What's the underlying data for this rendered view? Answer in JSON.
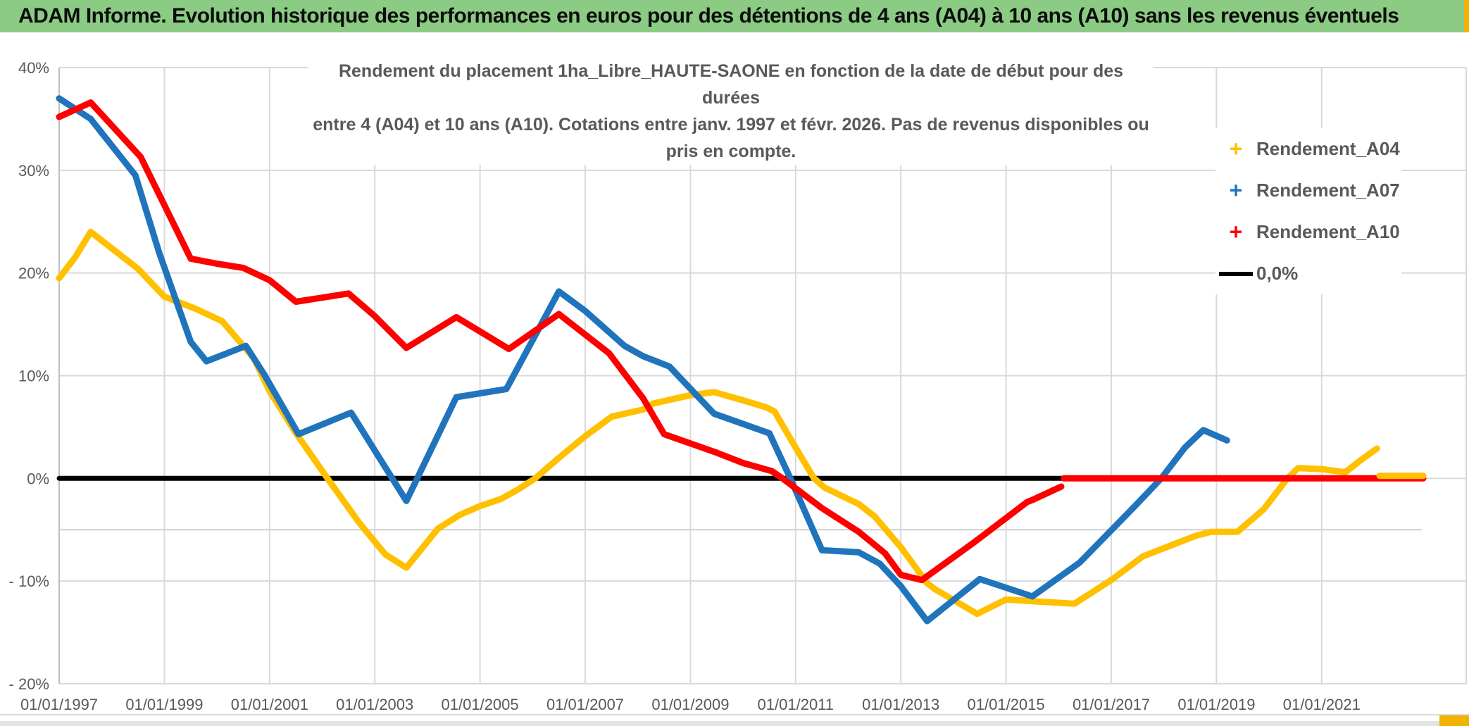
{
  "header": {
    "title": "ADAM Informe. Evolution historique des performances en euros pour des détentions de 4 ans (A04) à 10 ans (A10) sans les revenus éventuels",
    "bg_color": "#8BCB83",
    "accent_color": "#F2B200"
  },
  "chart_data": {
    "type": "line",
    "title_lines": [
      "Rendement du placement 1ha_Libre_HAUTE-SAONE en fonction de la date de début pour des durées",
      "entre 4 (A04) et 10 ans (A10). Cotations entre janv. 1997 et févr. 2026. Pas de revenus disponibles ou pris en compte."
    ],
    "x_axis": {
      "tick_labels": [
        "01/01/1997",
        "01/01/1999",
        "01/01/2001",
        "01/01/2003",
        "01/01/2005",
        "01/01/2007",
        "01/01/2009",
        "01/01/2011",
        "01/01/2013",
        "01/01/2015",
        "01/01/2017",
        "01/01/2019",
        "01/01/2021"
      ],
      "tick_years": [
        1997,
        1999,
        2001,
        2003,
        2005,
        2007,
        2009,
        2011,
        2013,
        2015,
        2017,
        2019,
        2021
      ],
      "xlim": [
        1997,
        2023.8
      ],
      "grid": "vertical every 2 years"
    },
    "y_axis": {
      "tick_labels": [
        "40%",
        "30%",
        "20%",
        "10%",
        "0%",
        "- 10%",
        "- 20%"
      ],
      "tick_values": [
        40,
        30,
        20,
        10,
        0,
        -10,
        -20
      ],
      "ylim": [
        -20,
        40
      ],
      "unit": "percent",
      "extra_faint_gridline_at": -5
    },
    "legend": [
      {
        "label": "Rendement_A04",
        "color": "#FFC000",
        "marker": "plus"
      },
      {
        "label": "Rendement_A07",
        "color": "#2074BC",
        "marker": "plus"
      },
      {
        "label": "Rendement_A10",
        "color": "#FF0000",
        "marker": "plus"
      },
      {
        "label": "0,0%",
        "color": "#000000",
        "marker": "line"
      }
    ],
    "series": [
      {
        "name": "Rendement_A04",
        "color": "#FFC000",
        "points": [
          [
            1997,
            19.5
          ],
          [
            1997.3,
            21.5
          ],
          [
            1997.6,
            24
          ],
          [
            1998,
            22.4
          ],
          [
            1998.5,
            20.4
          ],
          [
            1999,
            17.7
          ],
          [
            1999.6,
            16.5
          ],
          [
            2000.1,
            15.3
          ],
          [
            2000.7,
            11.7
          ],
          [
            2001,
            8.5
          ],
          [
            2001.5,
            4.4
          ],
          [
            2002.1,
            0
          ],
          [
            2002.7,
            -4.3
          ],
          [
            2003.2,
            -7.4
          ],
          [
            2003.6,
            -8.7
          ],
          [
            2004.2,
            -4.9
          ],
          [
            2004.6,
            -3.6
          ],
          [
            2005,
            -2.7
          ],
          [
            2005.4,
            -2
          ],
          [
            2005.75,
            -1
          ],
          [
            2006.05,
            0
          ],
          [
            2006.5,
            2
          ],
          [
            2007,
            4.1
          ],
          [
            2007.5,
            6
          ],
          [
            2008.1,
            6.7
          ],
          [
            2008.3,
            7.3
          ],
          [
            2009,
            8.1
          ],
          [
            2009.45,
            8.4
          ],
          [
            2010,
            7.6
          ],
          [
            2010.45,
            6.9
          ],
          [
            2010.6,
            6.5
          ],
          [
            2011,
            3
          ],
          [
            2011.35,
            0
          ],
          [
            2011.55,
            -0.9
          ],
          [
            2012.2,
            -2.5
          ],
          [
            2012.5,
            -3.7
          ],
          [
            2013,
            -6.7
          ],
          [
            2013.5,
            -10.2
          ],
          [
            2013.65,
            -10.8
          ],
          [
            2014.45,
            -13.2
          ],
          [
            2015,
            -11.8
          ],
          [
            2015.6,
            -12
          ],
          [
            2016.3,
            -12.2
          ],
          [
            2017,
            -9.9
          ],
          [
            2017.6,
            -7.6
          ],
          [
            2018,
            -6.8
          ],
          [
            2018.6,
            -5.6
          ],
          [
            2018.9,
            -5.2
          ],
          [
            2019.4,
            -5.2
          ],
          [
            2019.9,
            -3
          ],
          [
            2020.35,
            0
          ],
          [
            2020.55,
            1
          ],
          [
            2021,
            0.9
          ],
          [
            2021.45,
            0.6
          ],
          [
            2021.75,
            1.8
          ],
          [
            2022.05,
            2.9
          ]
        ]
      },
      {
        "name": "Rendement_A07",
        "color": "#2074BC",
        "points": [
          [
            1997,
            37
          ],
          [
            1997.6,
            35
          ],
          [
            1998.45,
            29.5
          ],
          [
            1998.9,
            22
          ],
          [
            1999.5,
            13.3
          ],
          [
            1999.8,
            11.4
          ],
          [
            2000.55,
            12.9
          ],
          [
            2000.9,
            10.1
          ],
          [
            2001.55,
            4.3
          ],
          [
            2002.55,
            6.4
          ],
          [
            2003.6,
            -2.2
          ],
          [
            2004.55,
            7.9
          ],
          [
            2005.5,
            8.7
          ],
          [
            2006.5,
            18.2
          ],
          [
            2007,
            16.3
          ],
          [
            2007.75,
            12.9
          ],
          [
            2008.1,
            11.9
          ],
          [
            2008.6,
            10.9
          ],
          [
            2009.45,
            6.3
          ],
          [
            2010.5,
            4.4
          ],
          [
            2010.9,
            0
          ],
          [
            2011.5,
            -7
          ],
          [
            2012.2,
            -7.2
          ],
          [
            2012.6,
            -8.3
          ],
          [
            2013,
            -10.5
          ],
          [
            2013.5,
            -13.9
          ],
          [
            2014.5,
            -9.8
          ],
          [
            2015.5,
            -11.5
          ],
          [
            2016.4,
            -8.2
          ],
          [
            2017.45,
            -2.7
          ],
          [
            2017.95,
            0
          ],
          [
            2018.4,
            3
          ],
          [
            2018.75,
            4.7
          ],
          [
            2019.2,
            3.7
          ]
        ]
      },
      {
        "name": "Rendement_A10",
        "color": "#FF0000",
        "points": [
          [
            1997,
            35.2
          ],
          [
            1997.6,
            36.6
          ],
          [
            1998.55,
            31.3
          ],
          [
            1999.5,
            21.4
          ],
          [
            2000,
            20.9
          ],
          [
            2000.5,
            20.5
          ],
          [
            2001,
            19.3
          ],
          [
            2001.5,
            17.2
          ],
          [
            2002,
            17.6
          ],
          [
            2002.5,
            18
          ],
          [
            2003,
            15.8
          ],
          [
            2003.6,
            12.7
          ],
          [
            2004.55,
            15.7
          ],
          [
            2005.55,
            12.6
          ],
          [
            2006.5,
            16
          ],
          [
            2007,
            14
          ],
          [
            2007.45,
            12.2
          ],
          [
            2008.1,
            7.8
          ],
          [
            2008.5,
            4.3
          ],
          [
            2009.5,
            2.5
          ],
          [
            2010,
            1.5
          ],
          [
            2010.55,
            0.7
          ],
          [
            2010.75,
            0
          ],
          [
            2011.5,
            -2.9
          ],
          [
            2012.2,
            -5.2
          ],
          [
            2012.7,
            -7.3
          ],
          [
            2013,
            -9.4
          ],
          [
            2013.4,
            -9.9
          ],
          [
            2014.4,
            -6.2
          ],
          [
            2015.4,
            -2.3
          ],
          [
            2015.5,
            -2.1
          ],
          [
            2016.05,
            -0.8
          ]
        ]
      },
      {
        "name": "0,0%",
        "color": "#000000",
        "points": [
          [
            1997,
            0
          ],
          [
            2022.9,
            0
          ]
        ]
      }
    ],
    "flat_zero_tails": [
      {
        "series": "Rendement_A10",
        "color": "#FF0000",
        "points": [
          [
            2016.1,
            0
          ],
          [
            2022.93,
            0
          ]
        ]
      },
      {
        "series": "Rendement_A04",
        "color": "#FFC000",
        "points": [
          [
            2022.1,
            0.25
          ],
          [
            2022.93,
            0.25
          ]
        ]
      }
    ],
    "legend_position": "right-inside",
    "grid_color": "#D9D9D9",
    "axis_text_color": "#595959"
  }
}
